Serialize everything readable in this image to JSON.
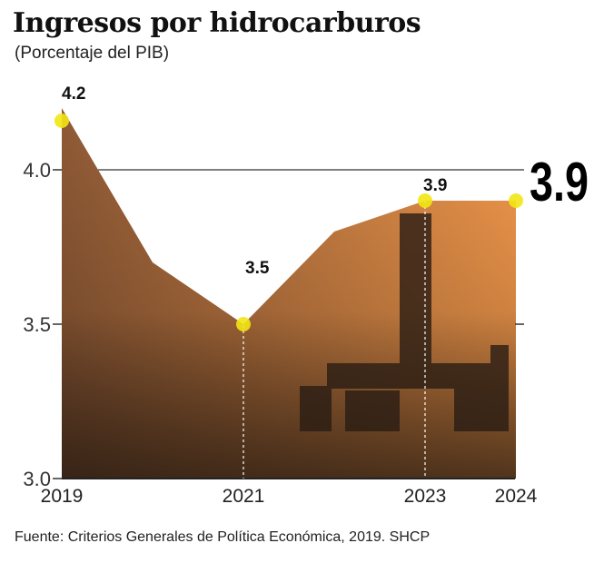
{
  "title": "Ingresos por hidrocarburos",
  "subtitle": "(Porcentaje del PIB)",
  "source": "Fuente: Criterios Generales de Política Económica, 2019. SHCP",
  "highlight_value": "3.9",
  "colors": {
    "area_left": "#8f5a36",
    "area_right": "#f59a4c",
    "marker": "#f2e614",
    "axis": "#333333"
  },
  "chart_data": {
    "type": "area",
    "x": [
      2019,
      2020,
      2021,
      2022,
      2023,
      2024
    ],
    "values": [
      4.2,
      3.7,
      3.5,
      3.8,
      3.9,
      3.9
    ],
    "ylim": [
      3.0,
      4.2
    ],
    "yticks": [
      "3.0",
      "3.5",
      "4.0"
    ],
    "xtick_labels": [
      "2019",
      "2021",
      "2023",
      "2024"
    ],
    "markers": [
      {
        "year": 2019,
        "value": 4.2,
        "label": "4.2"
      },
      {
        "year": 2021,
        "value": 3.5,
        "label": "3.5"
      },
      {
        "year": 2023,
        "value": 3.9,
        "label": "3.9"
      },
      {
        "year": 2024,
        "value": 3.9,
        "label": ""
      }
    ],
    "reference_line": 4.0,
    "grid": false,
    "xlabel": "",
    "ylabel": ""
  }
}
